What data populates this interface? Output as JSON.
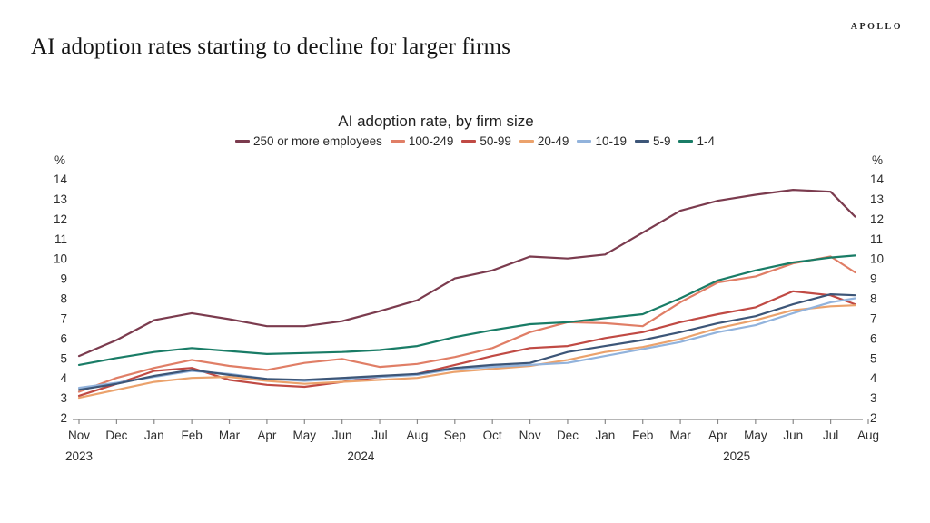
{
  "header": {
    "brand": "APOLLO",
    "title": "AI adoption rates starting to decline for larger firms"
  },
  "chart_data": {
    "type": "line",
    "title": "AI adoption rate, by firm size",
    "y_unit_label": "%",
    "ylim": [
      2,
      14
    ],
    "yticks": [
      2,
      3,
      4,
      5,
      6,
      7,
      8,
      9,
      10,
      11,
      12,
      13,
      14
    ],
    "grid": false,
    "legend_position": "top",
    "x": [
      "Nov 2023",
      "Dec 2023",
      "Jan 2024",
      "Feb 2024",
      "Mar 2024",
      "Apr 2024",
      "May 2024",
      "Jun 2024",
      "Jul 2024",
      "Aug 2024",
      "Sep 2024",
      "Oct 2024",
      "Nov 2024",
      "Dec 2024",
      "Jan 2025",
      "Feb 2025",
      "Mar 2025",
      "Apr 2025",
      "May 2025",
      "Jun 2025",
      "Jul 2025",
      "Aug 2025"
    ],
    "x_tick_labels": [
      "Nov",
      "Dec",
      "Jan",
      "Feb",
      "Mar",
      "Apr",
      "May",
      "Jun",
      "Jul",
      "Aug",
      "Sep",
      "Oct",
      "Nov",
      "Dec",
      "Jan",
      "Feb",
      "Mar",
      "Apr",
      "May",
      "Jun",
      "Jul",
      "Aug"
    ],
    "year_labels": [
      {
        "text": "2023",
        "from_index": 0,
        "to_index": 0
      },
      {
        "text": "2024",
        "from_index": 2,
        "to_index": 13
      },
      {
        "text": "2025",
        "from_index": 14,
        "to_index": 21
      }
    ],
    "series": [
      {
        "name": "250 or more employees",
        "color": "#7B3B4E",
        "values": [
          5.1,
          5.9,
          6.9,
          7.25,
          6.95,
          6.6,
          6.6,
          6.85,
          7.35,
          7.9,
          9.0,
          9.4,
          10.1,
          10.0,
          10.2,
          11.3,
          12.4,
          12.9,
          13.2,
          13.45,
          13.35,
          12.1
        ]
      },
      {
        "name": "100-249",
        "color": "#E07E66",
        "values": [
          3.3,
          4.0,
          4.5,
          4.9,
          4.6,
          4.4,
          4.75,
          4.95,
          4.55,
          4.7,
          5.05,
          5.5,
          6.3,
          6.8,
          6.75,
          6.6,
          7.8,
          8.8,
          9.1,
          9.75,
          10.1,
          9.3
        ]
      },
      {
        "name": "50-99",
        "color": "#C04A44",
        "values": [
          3.1,
          3.7,
          4.35,
          4.5,
          3.9,
          3.65,
          3.55,
          3.8,
          4.05,
          4.2,
          4.65,
          5.1,
          5.5,
          5.6,
          6.0,
          6.3,
          6.8,
          7.2,
          7.55,
          8.35,
          8.15,
          7.7
        ]
      },
      {
        "name": "20-49",
        "color": "#EBA26C",
        "values": [
          3.0,
          3.4,
          3.8,
          4.0,
          4.05,
          3.85,
          3.7,
          3.8,
          3.9,
          4.0,
          4.3,
          4.45,
          4.6,
          4.9,
          5.3,
          5.55,
          5.95,
          6.5,
          6.9,
          7.4,
          7.6,
          7.65
        ]
      },
      {
        "name": "10-19",
        "color": "#92B3DC",
        "values": [
          3.5,
          3.75,
          4.05,
          4.35,
          4.2,
          3.95,
          3.85,
          3.95,
          4.05,
          4.15,
          4.45,
          4.55,
          4.65,
          4.75,
          5.1,
          5.45,
          5.8,
          6.3,
          6.65,
          7.25,
          7.8,
          8.0
        ]
      },
      {
        "name": "5-9",
        "color": "#3D5678",
        "values": [
          3.4,
          3.7,
          4.1,
          4.4,
          4.15,
          3.95,
          3.9,
          4.0,
          4.1,
          4.2,
          4.5,
          4.65,
          4.75,
          5.3,
          5.6,
          5.9,
          6.3,
          6.75,
          7.1,
          7.7,
          8.2,
          8.15
        ]
      },
      {
        "name": "1-4",
        "color": "#197C66",
        "values": [
          4.65,
          5.0,
          5.3,
          5.5,
          5.35,
          5.2,
          5.25,
          5.3,
          5.4,
          5.6,
          6.05,
          6.4,
          6.7,
          6.8,
          7.0,
          7.2,
          8.0,
          8.9,
          9.4,
          9.8,
          10.05,
          10.15
        ]
      }
    ]
  }
}
